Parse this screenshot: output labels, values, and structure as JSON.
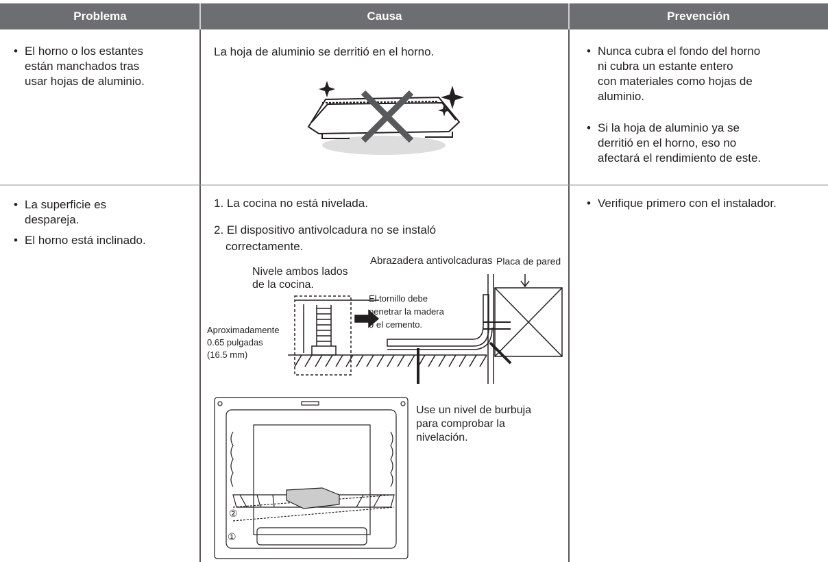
{
  "table": {
    "headers": [
      "Problema",
      "Causa",
      "Prevención"
    ],
    "rows": [
      {
        "problem": [
          [
            "El horno o los estantes",
            "están manchados tras",
            "usar hojas de aluminio."
          ]
        ],
        "cause": [
          "La hoja de aluminio se derritió en el horno."
        ],
        "prevention": [
          [
            "Nunca cubra el fondo del horno",
            "ni cubra un estante entero",
            "con materiales como hojas de",
            "aluminio."
          ],
          [
            "Si la hoja de aluminio ya se",
            "derritió en el horno, eso no",
            "afectará el rendimiento de este."
          ]
        ]
      },
      {
        "problem": [
          [
            "La superficie es",
            "despareja."
          ],
          [
            "El horno está inclinado."
          ]
        ],
        "cause": [
          "1. La cocina no está nivelada.",
          "2. El dispositivo antivolcadura no se instaló",
          "correctamente."
        ],
        "prevention": [
          [
            "Verifique primero con el instalador."
          ]
        ]
      }
    ]
  },
  "figures": {
    "leveling": {
      "bracket": "Abrazadera antivolcaduras",
      "wall_plate": "Placa de pared",
      "level_sides": [
        "Nivele ambos lados",
        "de la cocina."
      ],
      "screw": [
        "El tornillo debe",
        "penetrar la madera",
        "o el cemento."
      ],
      "approx": [
        "Aproximadamente",
        "0.65 pulgadas",
        "(16.5 mm)"
      ]
    },
    "bubble_level": {
      "text": [
        "Use un nivel de burbuja",
        "para comprobar la",
        "nivelación."
      ],
      "marker_2": "②",
      "marker_1": "①"
    }
  }
}
